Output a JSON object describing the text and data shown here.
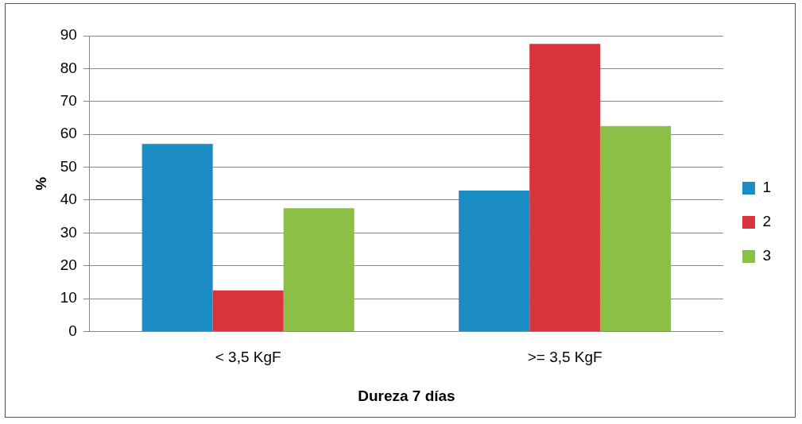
{
  "chart_data": {
    "type": "bar",
    "xlabel": "Dureza 7 días",
    "ylabel": "%",
    "categories": [
      "< 3,5 KgF",
      ">= 3,5 KgF"
    ],
    "series": [
      {
        "name": "1",
        "color": "#1b8cc4",
        "values": [
          57.1,
          42.9
        ]
      },
      {
        "name": "2",
        "color": "#d8343e",
        "values": [
          12.5,
          87.5
        ]
      },
      {
        "name": "3",
        "color": "#8cbf46",
        "values": [
          37.5,
          62.5
        ]
      }
    ],
    "ylim": [
      0,
      90
    ],
    "yticks": [
      0,
      10,
      20,
      30,
      40,
      50,
      60,
      70,
      80,
      90
    ],
    "grid": "y",
    "legend": "right"
  }
}
